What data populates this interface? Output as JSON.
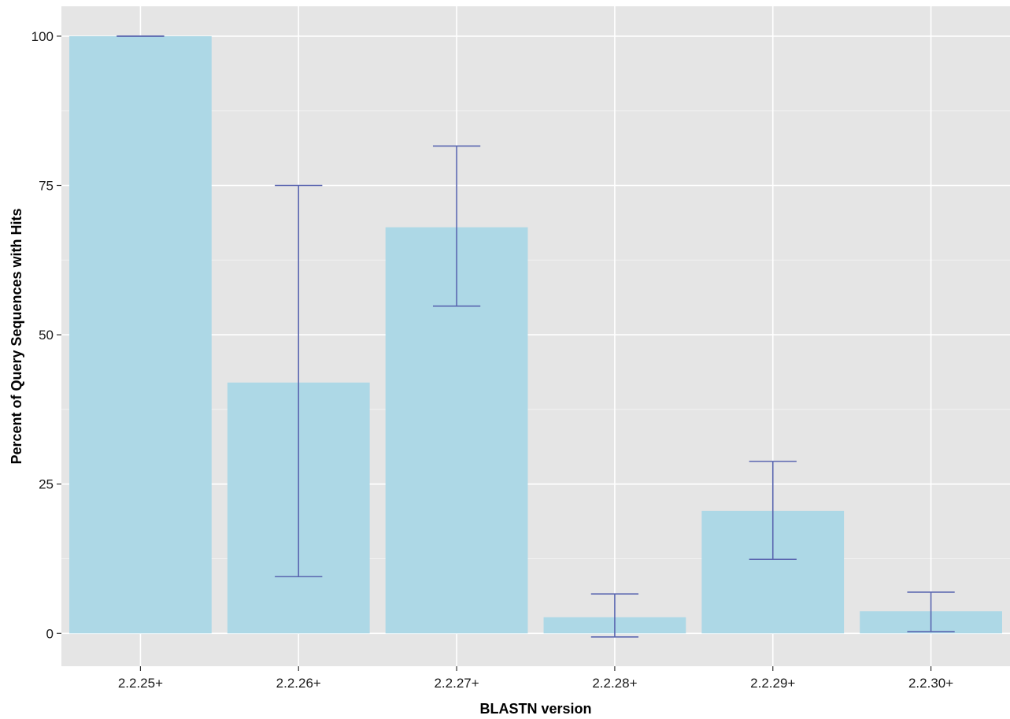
{
  "chart_data": {
    "type": "bar",
    "title": "",
    "xlabel": "BLASTN version",
    "ylabel": "Percent of Query Sequences with Hits",
    "categories": [
      "2.2.25+",
      "2.2.26+",
      "2.2.27+",
      "2.2.28+",
      "2.2.29+",
      "2.2.30+"
    ],
    "values": [
      100,
      42,
      68,
      2.7,
      20.5,
      3.7
    ],
    "error_low": [
      100,
      9.5,
      54.8,
      -0.6,
      12.4,
      0.3
    ],
    "error_high": [
      100,
      75,
      81.6,
      6.6,
      28.8,
      6.9
    ],
    "ylim": [
      -5.5,
      105
    ],
    "yticks": [
      0,
      25,
      50,
      75,
      100
    ],
    "grid": true,
    "legend": "none",
    "colors": {
      "bar": "#add8e6",
      "errorbar": "#5a66b0",
      "panel": "#e5e5e5",
      "grid_major": "#ffffff",
      "grid_minor": "#f2f2f2"
    }
  }
}
